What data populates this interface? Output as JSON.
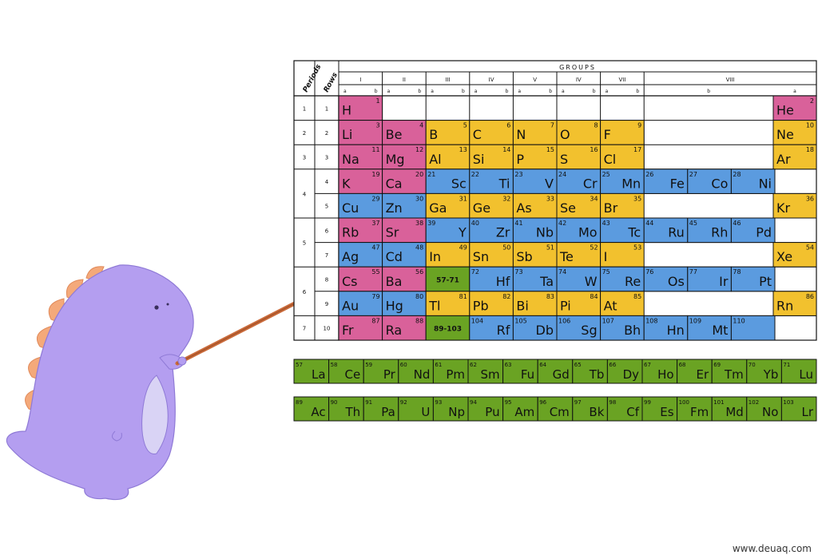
{
  "header": {
    "periods_label": "Periods",
    "rows_label": "Rows",
    "groups_title": "GROUPS",
    "group_labels": [
      "I",
      "II",
      "III",
      "IV",
      "V",
      "IV",
      "VII",
      "VIII"
    ],
    "subgroups": [
      [
        "a",
        "b"
      ],
      [
        "a",
        "b"
      ],
      [
        "a",
        "b"
      ],
      [
        "a",
        "b"
      ],
      [
        "a",
        "b"
      ],
      [
        "a",
        "b"
      ],
      [
        "a",
        "b"
      ],
      [
        "b",
        "a"
      ]
    ],
    "period_numbers": [
      "1",
      "2",
      "3",
      "4",
      "5",
      "6",
      "7"
    ],
    "row_numbers": [
      "1",
      "2",
      "3",
      "4",
      "5",
      "6",
      "7",
      "8",
      "9",
      "10"
    ]
  },
  "colors": {
    "alkali": "#d9619a",
    "p_block": "#f2c12e",
    "transition": "#5b9bdf",
    "lanthanide_actinide": "#6aa323",
    "border": "#111111",
    "dino_body": "#b49ef0",
    "dino_belly": "#d9d3f5",
    "dino_spikes": "#f4a97a",
    "pointer": "#c96a3a"
  },
  "cells": [
    {
      "sym": "H",
      "num": "1",
      "row": 0,
      "col": 0,
      "color": "alkali"
    },
    {
      "sym": "He",
      "num": "2",
      "row": 0,
      "col": 17,
      "color": "alkali"
    },
    {
      "sym": "Li",
      "num": "3",
      "row": 1,
      "col": 0,
      "color": "alkali"
    },
    {
      "sym": "Be",
      "num": "4",
      "row": 1,
      "col": 1,
      "color": "alkali"
    },
    {
      "sym": "B",
      "num": "5",
      "row": 1,
      "col": 2,
      "color": "p_block"
    },
    {
      "sym": "C",
      "num": "6",
      "row": 1,
      "col": 3,
      "color": "p_block"
    },
    {
      "sym": "N",
      "num": "7",
      "row": 1,
      "col": 4,
      "color": "p_block"
    },
    {
      "sym": "O",
      "num": "8",
      "row": 1,
      "col": 5,
      "color": "p_block"
    },
    {
      "sym": "F",
      "num": "9",
      "row": 1,
      "col": 6,
      "color": "p_block"
    },
    {
      "sym": "Ne",
      "num": "10",
      "row": 1,
      "col": 17,
      "color": "p_block"
    },
    {
      "sym": "Na",
      "num": "11",
      "row": 2,
      "col": 0,
      "color": "alkali"
    },
    {
      "sym": "Mg",
      "num": "12",
      "row": 2,
      "col": 1,
      "color": "alkali"
    },
    {
      "sym": "Al",
      "num": "13",
      "row": 2,
      "col": 2,
      "color": "p_block"
    },
    {
      "sym": "Si",
      "num": "14",
      "row": 2,
      "col": 3,
      "color": "p_block"
    },
    {
      "sym": "P",
      "num": "15",
      "row": 2,
      "col": 4,
      "color": "p_block"
    },
    {
      "sym": "S",
      "num": "16",
      "row": 2,
      "col": 5,
      "color": "p_block"
    },
    {
      "sym": "Cl",
      "num": "17",
      "row": 2,
      "col": 6,
      "color": "p_block"
    },
    {
      "sym": "Ar",
      "num": "18",
      "row": 2,
      "col": 17,
      "color": "p_block"
    },
    {
      "sym": "K",
      "num": "19",
      "row": 3,
      "col": 0,
      "color": "alkali"
    },
    {
      "sym": "Ca",
      "num": "20",
      "row": 3,
      "col": 1,
      "color": "alkali"
    },
    {
      "sym": "Sc",
      "num": "21",
      "row": 3,
      "col": 2,
      "color": "transition"
    },
    {
      "sym": "Ti",
      "num": "22",
      "row": 3,
      "col": 3,
      "color": "transition"
    },
    {
      "sym": "V",
      "num": "23",
      "row": 3,
      "col": 4,
      "color": "transition"
    },
    {
      "sym": "Cr",
      "num": "24",
      "row": 3,
      "col": 5,
      "color": "transition"
    },
    {
      "sym": "Mn",
      "num": "25",
      "row": 3,
      "col": 6,
      "color": "transition"
    },
    {
      "sym": "Fe",
      "num": "26",
      "row": 3,
      "col": 7,
      "color": "transition"
    },
    {
      "sym": "Co",
      "num": "27",
      "row": 3,
      "col": 8,
      "color": "transition"
    },
    {
      "sym": "Ni",
      "num": "28",
      "row": 3,
      "col": 9,
      "color": "transition"
    },
    {
      "sym": "Cu",
      "num": "29",
      "row": 4,
      "col": 0,
      "color": "transition"
    },
    {
      "sym": "Zn",
      "num": "30",
      "row": 4,
      "col": 1,
      "color": "transition"
    },
    {
      "sym": "Ga",
      "num": "31",
      "row": 4,
      "col": 2,
      "color": "p_block"
    },
    {
      "sym": "Ge",
      "num": "32",
      "row": 4,
      "col": 3,
      "color": "p_block"
    },
    {
      "sym": "As",
      "num": "33",
      "row": 4,
      "col": 4,
      "color": "p_block"
    },
    {
      "sym": "Se",
      "num": "34",
      "row": 4,
      "col": 5,
      "color": "p_block"
    },
    {
      "sym": "Br",
      "num": "35",
      "row": 4,
      "col": 6,
      "color": "p_block"
    },
    {
      "sym": "Kr",
      "num": "36",
      "row": 4,
      "col": 17,
      "color": "p_block"
    },
    {
      "sym": "Rb",
      "num": "37",
      "row": 5,
      "col": 0,
      "color": "alkali"
    },
    {
      "sym": "Sr",
      "num": "38",
      "row": 5,
      "col": 1,
      "color": "alkali"
    },
    {
      "sym": "Y",
      "num": "39",
      "row": 5,
      "col": 2,
      "color": "transition"
    },
    {
      "sym": "Zr",
      "num": "40",
      "row": 5,
      "col": 3,
      "color": "transition"
    },
    {
      "sym": "Nb",
      "num": "41",
      "row": 5,
      "col": 4,
      "color": "transition"
    },
    {
      "sym": "Mo",
      "num": "42",
      "row": 5,
      "col": 5,
      "color": "transition"
    },
    {
      "sym": "Tc",
      "num": "43",
      "row": 5,
      "col": 6,
      "color": "transition"
    },
    {
      "sym": "Ru",
      "num": "44",
      "row": 5,
      "col": 7,
      "color": "transition"
    },
    {
      "sym": "Rh",
      "num": "45",
      "row": 5,
      "col": 8,
      "color": "transition"
    },
    {
      "sym": "Pd",
      "num": "46",
      "row": 5,
      "col": 9,
      "color": "transition"
    },
    {
      "sym": "Ag",
      "num": "47",
      "row": 6,
      "col": 0,
      "color": "transition"
    },
    {
      "sym": "Cd",
      "num": "48",
      "row": 6,
      "col": 1,
      "color": "transition"
    },
    {
      "sym": "In",
      "num": "49",
      "row": 6,
      "col": 2,
      "color": "p_block"
    },
    {
      "sym": "Sn",
      "num": "50",
      "row": 6,
      "col": 3,
      "color": "p_block"
    },
    {
      "sym": "Sb",
      "num": "51",
      "row": 6,
      "col": 4,
      "color": "p_block"
    },
    {
      "sym": "Te",
      "num": "52",
      "row": 6,
      "col": 5,
      "color": "p_block"
    },
    {
      "sym": "I",
      "num": "53",
      "row": 6,
      "col": 6,
      "color": "p_block"
    },
    {
      "sym": "Xe",
      "num": "54",
      "row": 6,
      "col": 17,
      "color": "p_block"
    },
    {
      "sym": "Cs",
      "num": "55",
      "row": 7,
      "col": 0,
      "color": "alkali"
    },
    {
      "sym": "Ba",
      "num": "56",
      "row": 7,
      "col": 1,
      "color": "alkali"
    },
    {
      "sym": "57-71",
      "num": "",
      "row": 7,
      "col": 2,
      "color": "lanthanide_actinide",
      "small": true
    },
    {
      "sym": "Hf",
      "num": "72",
      "row": 7,
      "col": 3,
      "color": "transition"
    },
    {
      "sym": "Ta",
      "num": "73",
      "row": 7,
      "col": 4,
      "color": "transition"
    },
    {
      "sym": "W",
      "num": "74",
      "row": 7,
      "col": 5,
      "color": "transition"
    },
    {
      "sym": "Re",
      "num": "75",
      "row": 7,
      "col": 6,
      "color": "transition"
    },
    {
      "sym": "Os",
      "num": "76",
      "row": 7,
      "col": 7,
      "color": "transition"
    },
    {
      "sym": "Ir",
      "num": "77",
      "row": 7,
      "col": 8,
      "color": "transition"
    },
    {
      "sym": "Pt",
      "num": "78",
      "row": 7,
      "col": 9,
      "color": "transition"
    },
    {
      "sym": "Au",
      "num": "79",
      "row": 8,
      "col": 0,
      "color": "transition"
    },
    {
      "sym": "Hg",
      "num": "80",
      "row": 8,
      "col": 1,
      "color": "transition"
    },
    {
      "sym": "Tl",
      "num": "81",
      "row": 8,
      "col": 2,
      "color": "p_block"
    },
    {
      "sym": "Pb",
      "num": "82",
      "row": 8,
      "col": 3,
      "color": "p_block"
    },
    {
      "sym": "Bi",
      "num": "83",
      "row": 8,
      "col": 4,
      "color": "p_block"
    },
    {
      "sym": "Pi",
      "num": "84",
      "row": 8,
      "col": 5,
      "color": "p_block"
    },
    {
      "sym": "At",
      "num": "85",
      "row": 8,
      "col": 6,
      "color": "p_block"
    },
    {
      "sym": "Rn",
      "num": "86",
      "row": 8,
      "col": 17,
      "color": "p_block"
    },
    {
      "sym": "Fr",
      "num": "87",
      "row": 9,
      "col": 0,
      "color": "alkali"
    },
    {
      "sym": "Ra",
      "num": "88",
      "row": 9,
      "col": 1,
      "color": "alkali"
    },
    {
      "sym": "89-103",
      "num": "",
      "row": 9,
      "col": 2,
      "color": "lanthanide_actinide",
      "small": true
    },
    {
      "sym": "Rf",
      "num": "104",
      "row": 9,
      "col": 3,
      "color": "transition"
    },
    {
      "sym": "Db",
      "num": "105",
      "row": 9,
      "col": 4,
      "color": "transition"
    },
    {
      "sym": "Sg",
      "num": "106",
      "row": 9,
      "col": 5,
      "color": "transition"
    },
    {
      "sym": "Bh",
      "num": "107",
      "row": 9,
      "col": 6,
      "color": "transition"
    },
    {
      "sym": "Hn",
      "num": "108",
      "row": 9,
      "col": 7,
      "color": "transition"
    },
    {
      "sym": "Mt",
      "num": "109",
      "row": 9,
      "col": 8,
      "color": "transition"
    },
    {
      "sym": "",
      "num": "110",
      "row": 9,
      "col": 9,
      "color": "transition"
    }
  ],
  "lanthanides": [
    {
      "sym": "La",
      "num": "57"
    },
    {
      "sym": "Ce",
      "num": "58"
    },
    {
      "sym": "Pr",
      "num": "59"
    },
    {
      "sym": "Nd",
      "num": "60"
    },
    {
      "sym": "Pm",
      "num": "61"
    },
    {
      "sym": "Sm",
      "num": "62"
    },
    {
      "sym": "Fu",
      "num": "63"
    },
    {
      "sym": "Gd",
      "num": "64"
    },
    {
      "sym": "Tb",
      "num": "65"
    },
    {
      "sym": "Dy",
      "num": "66"
    },
    {
      "sym": "Ho",
      "num": "67"
    },
    {
      "sym": "Er",
      "num": "68"
    },
    {
      "sym": "Tm",
      "num": "69"
    },
    {
      "sym": "Yb",
      "num": "70"
    },
    {
      "sym": "Lu",
      "num": "71"
    }
  ],
  "actinides": [
    {
      "sym": "Ac",
      "num": "89"
    },
    {
      "sym": "Th",
      "num": "90"
    },
    {
      "sym": "Pa",
      "num": "91"
    },
    {
      "sym": "U",
      "num": "92"
    },
    {
      "sym": "Np",
      "num": "93"
    },
    {
      "sym": "Pu",
      "num": "94"
    },
    {
      "sym": "Am",
      "num": "95"
    },
    {
      "sym": "Cm",
      "num": "96"
    },
    {
      "sym": "Bk",
      "num": "97"
    },
    {
      "sym": "Cf",
      "num": "98"
    },
    {
      "sym": "Es",
      "num": "99"
    },
    {
      "sym": "Fm",
      "num": "100"
    },
    {
      "sym": "Md",
      "num": "101"
    },
    {
      "sym": "No",
      "num": "102"
    },
    {
      "sym": "Lr",
      "num": "103"
    }
  ],
  "watermark": "www.deuaq.com"
}
